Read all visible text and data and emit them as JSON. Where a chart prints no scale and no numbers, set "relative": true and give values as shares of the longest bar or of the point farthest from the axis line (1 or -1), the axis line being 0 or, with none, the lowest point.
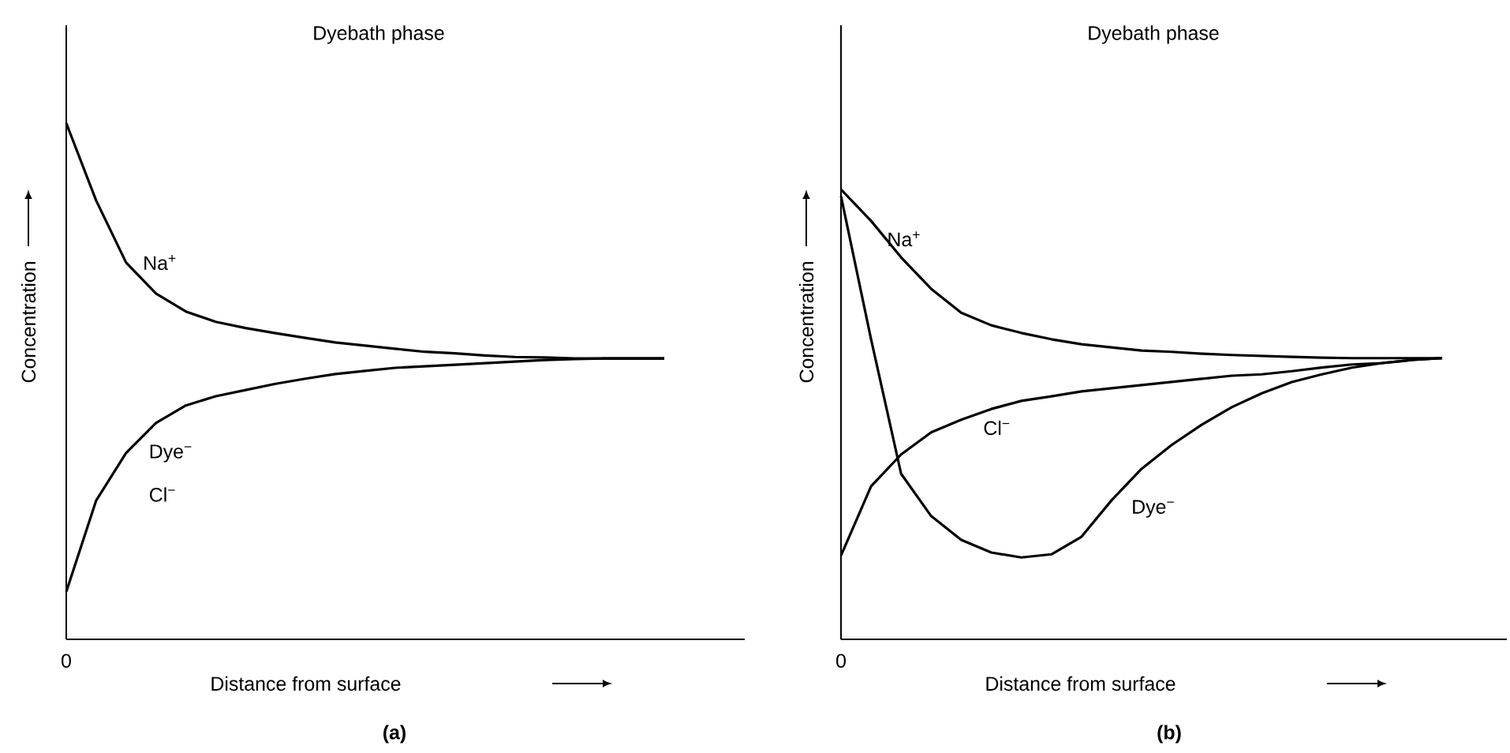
{
  "chart_data": [
    {
      "type": "line",
      "title": "Dyebath phase",
      "subtitle": "(a)",
      "xlabel": "Distance from surface",
      "ylabel": "Concentration",
      "relative": true,
      "categories": [
        null,
        null,
        null,
        null,
        null,
        null,
        null,
        null,
        null,
        null,
        null,
        null,
        null,
        null,
        null,
        null,
        null,
        null,
        null,
        null,
        null
      ],
      "series": [
        {
          "name": "Na$^{+}$",
          "color": "#000000",
          "values": [
            1,
            0.85,
            0.73,
            0.67,
            0.635,
            0.615,
            0.603,
            0.593,
            0.584,
            0.575,
            0.569,
            0.563,
            0.557,
            0.554,
            0.55,
            0.547,
            0.546,
            0.544,
            0.544,
            0.544,
            0.544
          ]
        },
        {
          "name": "Dye$^{−}$",
          "color": "#000000",
          "values": [
            0.092,
            0.269,
            0.361,
            0.419,
            0.453,
            0.471,
            0.483,
            0.495,
            0.505,
            0.514,
            0.52,
            0.526,
            0.529,
            0.532,
            0.535,
            0.538,
            0.541,
            0.543,
            0.544,
            0.544,
            0.544
          ]
        }
      ],
      "annotations": [
        "Cl$^{−}$",
        "0"
      ]
    },
    {
      "type": "line",
      "title": "Dyebath phase",
      "subtitle": "(b)",
      "xlabel": "Distance from surface",
      "ylabel": "Concentration",
      "relative": true,
      "annotations": [
        "0"
      ],
      "categories": [
        null,
        null,
        null,
        null,
        null,
        null,
        null,
        null,
        null,
        null,
        null,
        null,
        null,
        null,
        null,
        null,
        null,
        null,
        null,
        null,
        null
      ],
      "series": [
        {
          "name": "Na$^{+}$",
          "color": "#000000",
          "values": [
            1,
            0.93,
            0.849,
            0.779,
            0.726,
            0.698,
            0.681,
            0.667,
            0.656,
            0.649,
            0.642,
            0.639,
            0.635,
            0.632,
            0.63,
            0.628,
            0.626,
            0.625,
            0.625,
            0.625,
            0.625
          ]
        },
        {
          "name": "Cl$^{−}$",
          "color": "#000000",
          "values": [
            0.186,
            0.34,
            0.411,
            0.46,
            0.488,
            0.512,
            0.53,
            0.54,
            0.551,
            0.558,
            0.565,
            0.572,
            0.579,
            0.586,
            0.589,
            0.596,
            0.604,
            0.611,
            0.614,
            0.621,
            0.625
          ]
        },
        {
          "name": "Dye$^{−}$",
          "color": "#000000",
          "values": [
            0.985,
            0.667,
            0.368,
            0.274,
            0.221,
            0.193,
            0.182,
            0.189,
            0.228,
            0.309,
            0.379,
            0.432,
            0.477,
            0.516,
            0.547,
            0.572,
            0.589,
            0.604,
            0.614,
            0.621,
            0.625
          ]
        }
      ]
    }
  ]
}
